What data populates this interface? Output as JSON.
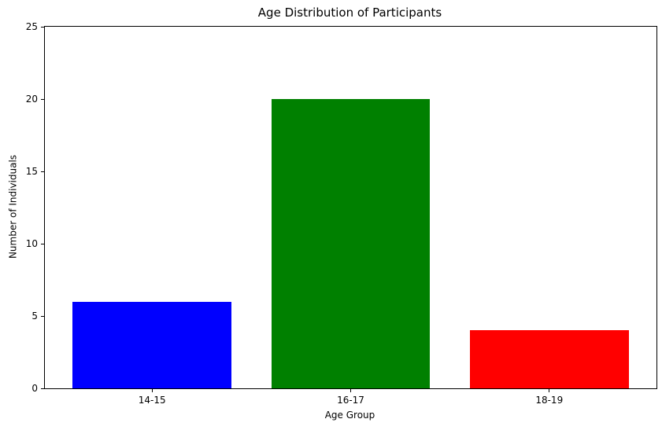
{
  "chart_data": {
    "type": "bar",
    "title": "Age Distribution of Participants",
    "xlabel": "Age Group",
    "ylabel": "Number of Individuals",
    "categories": [
      "14-15",
      "16-17",
      "18-19"
    ],
    "values": [
      6,
      20,
      4
    ],
    "bar_colors": [
      "#0000ff",
      "#008000",
      "#ff0000"
    ],
    "ylim": [
      0,
      25
    ],
    "yticks": [
      0,
      5,
      10,
      15,
      20,
      25
    ],
    "bar_width_fraction": 0.8,
    "grid": false,
    "legend_position": "none",
    "background_color": "#ffffff",
    "axis_color": "#000000"
  }
}
